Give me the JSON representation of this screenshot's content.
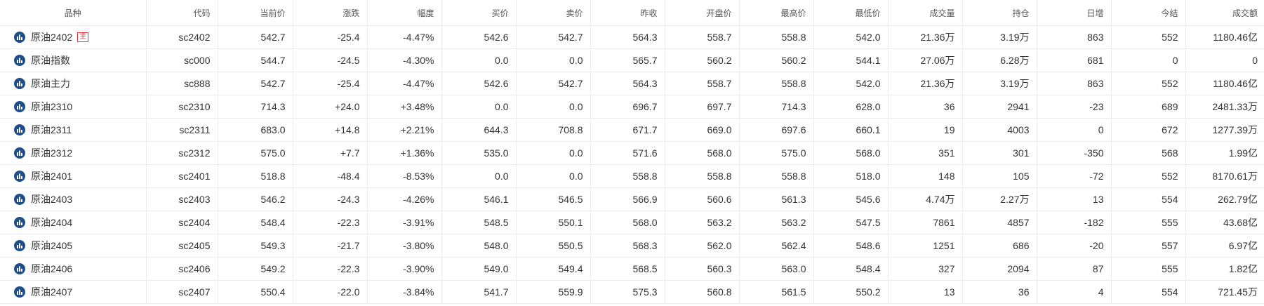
{
  "colors": {
    "up": "#e0353a",
    "down": "#08a87a",
    "flat": "#333333",
    "icon": "#1f4e8c"
  },
  "table": {
    "headers": {
      "name": "品种",
      "code": "代码",
      "price": "当前价",
      "change": "涨跌",
      "pct": "幅度",
      "bid": "买价",
      "ask": "卖价",
      "prev_close": "昨收",
      "open": "开盘价",
      "high": "最高价",
      "low": "最低价",
      "volume": "成交量",
      "open_interest": "持仓",
      "daily_change": "日增",
      "settle": "今结",
      "turnover": "成交额"
    },
    "rows": [
      {
        "name": "原油2402",
        "tag": "主",
        "code": "sc2402",
        "price": "542.7",
        "price_dir": "down",
        "change": "-25.4",
        "change_dir": "down",
        "pct": "-4.47%",
        "pct_dir": "down",
        "bid": "542.6",
        "bid_dir": "down",
        "ask": "542.7",
        "ask_dir": "down",
        "prev_close": "564.3",
        "open": "558.7",
        "high": "558.8",
        "low": "542.0",
        "volume": "21.36万",
        "open_interest": "3.19万",
        "daily_change": "863",
        "settle": "552",
        "turnover": "1180.46亿"
      },
      {
        "name": "原油指数",
        "tag": "",
        "code": "sc000",
        "price": "544.7",
        "price_dir": "down",
        "change": "-24.5",
        "change_dir": "down",
        "pct": "-4.30%",
        "pct_dir": "down",
        "bid": "0.0",
        "bid_dir": "down",
        "ask": "0.0",
        "ask_dir": "down",
        "prev_close": "565.7",
        "open": "560.2",
        "high": "560.2",
        "low": "544.1",
        "volume": "27.06万",
        "open_interest": "6.28万",
        "daily_change": "681",
        "settle": "0",
        "turnover": "0"
      },
      {
        "name": "原油主力",
        "tag": "",
        "code": "sc888",
        "price": "542.7",
        "price_dir": "down",
        "change": "-25.4",
        "change_dir": "down",
        "pct": "-4.47%",
        "pct_dir": "down",
        "bid": "542.6",
        "bid_dir": "down",
        "ask": "542.7",
        "ask_dir": "down",
        "prev_close": "564.3",
        "open": "558.7",
        "high": "558.8",
        "low": "542.0",
        "volume": "21.36万",
        "open_interest": "3.19万",
        "daily_change": "863",
        "settle": "552",
        "turnover": "1180.46亿"
      },
      {
        "name": "原油2310",
        "tag": "",
        "code": "sc2310",
        "price": "714.3",
        "price_dir": "up",
        "change": "+24.0",
        "change_dir": "up",
        "pct": "+3.48%",
        "pct_dir": "up",
        "bid": "0.0",
        "bid_dir": "up",
        "ask": "0.0",
        "ask_dir": "up",
        "prev_close": "696.7",
        "open": "697.7",
        "high": "714.3",
        "low": "628.0",
        "volume": "36",
        "open_interest": "2941",
        "daily_change": "-23",
        "settle": "689",
        "turnover": "2481.33万"
      },
      {
        "name": "原油2311",
        "tag": "",
        "code": "sc2311",
        "price": "683.0",
        "price_dir": "up",
        "change": "+14.8",
        "change_dir": "up",
        "pct": "+2.21%",
        "pct_dir": "up",
        "bid": "644.3",
        "bid_dir": "up",
        "ask": "708.8",
        "ask_dir": "up",
        "prev_close": "671.7",
        "open": "669.0",
        "high": "697.6",
        "low": "660.1",
        "volume": "19",
        "open_interest": "4003",
        "daily_change": "0",
        "settle": "672",
        "turnover": "1277.39万"
      },
      {
        "name": "原油2312",
        "tag": "",
        "code": "sc2312",
        "price": "575.0",
        "price_dir": "up",
        "change": "+7.7",
        "change_dir": "up",
        "pct": "+1.36%",
        "pct_dir": "up",
        "bid": "535.0",
        "bid_dir": "up",
        "ask": "0.0",
        "ask_dir": "up",
        "prev_close": "571.6",
        "open": "568.0",
        "high": "575.0",
        "low": "568.0",
        "volume": "351",
        "open_interest": "301",
        "daily_change": "-350",
        "settle": "568",
        "turnover": "1.99亿"
      },
      {
        "name": "原油2401",
        "tag": "",
        "code": "sc2401",
        "price": "518.8",
        "price_dir": "down",
        "change": "-48.4",
        "change_dir": "down",
        "pct": "-8.53%",
        "pct_dir": "down",
        "bid": "0.0",
        "bid_dir": "down",
        "ask": "0.0",
        "ask_dir": "down",
        "prev_close": "558.8",
        "open": "558.8",
        "high": "558.8",
        "low": "518.0",
        "volume": "148",
        "open_interest": "105",
        "daily_change": "-72",
        "settle": "552",
        "turnover": "8170.61万"
      },
      {
        "name": "原油2403",
        "tag": "",
        "code": "sc2403",
        "price": "546.2",
        "price_dir": "down",
        "change": "-24.3",
        "change_dir": "down",
        "pct": "-4.26%",
        "pct_dir": "down",
        "bid": "546.1",
        "bid_dir": "down",
        "ask": "546.5",
        "ask_dir": "down",
        "prev_close": "566.9",
        "open": "560.6",
        "high": "561.3",
        "low": "545.6",
        "volume": "4.74万",
        "open_interest": "2.27万",
        "daily_change": "13",
        "settle": "554",
        "turnover": "262.79亿"
      },
      {
        "name": "原油2404",
        "tag": "",
        "code": "sc2404",
        "price": "548.4",
        "price_dir": "down",
        "change": "-22.3",
        "change_dir": "down",
        "pct": "-3.91%",
        "pct_dir": "down",
        "bid": "548.5",
        "bid_dir": "down",
        "ask": "550.1",
        "ask_dir": "down",
        "prev_close": "568.0",
        "open": "563.2",
        "high": "563.2",
        "low": "547.5",
        "volume": "7861",
        "open_interest": "4857",
        "daily_change": "-182",
        "settle": "555",
        "turnover": "43.68亿"
      },
      {
        "name": "原油2405",
        "tag": "",
        "code": "sc2405",
        "price": "549.3",
        "price_dir": "down",
        "change": "-21.7",
        "change_dir": "down",
        "pct": "-3.80%",
        "pct_dir": "down",
        "bid": "548.0",
        "bid_dir": "down",
        "ask": "550.5",
        "ask_dir": "down",
        "prev_close": "568.3",
        "open": "562.0",
        "high": "562.4",
        "low": "548.6",
        "volume": "1251",
        "open_interest": "686",
        "daily_change": "-20",
        "settle": "557",
        "turnover": "6.97亿"
      },
      {
        "name": "原油2406",
        "tag": "",
        "code": "sc2406",
        "price": "549.2",
        "price_dir": "down",
        "change": "-22.3",
        "change_dir": "down",
        "pct": "-3.90%",
        "pct_dir": "down",
        "bid": "549.0",
        "bid_dir": "down",
        "ask": "549.4",
        "ask_dir": "down",
        "prev_close": "568.5",
        "open": "560.3",
        "high": "563.0",
        "low": "548.4",
        "volume": "327",
        "open_interest": "2094",
        "daily_change": "87",
        "settle": "555",
        "turnover": "1.82亿"
      },
      {
        "name": "原油2407",
        "tag": "",
        "code": "sc2407",
        "price": "550.4",
        "price_dir": "down",
        "change": "-22.0",
        "change_dir": "down",
        "pct": "-3.84%",
        "pct_dir": "down",
        "bid": "541.7",
        "bid_dir": "down",
        "ask": "559.9",
        "ask_dir": "down",
        "prev_close": "575.3",
        "open": "560.8",
        "high": "561.5",
        "low": "550.2",
        "volume": "13",
        "open_interest": "36",
        "daily_change": "4",
        "settle": "554",
        "turnover": "721.45万"
      }
    ]
  }
}
